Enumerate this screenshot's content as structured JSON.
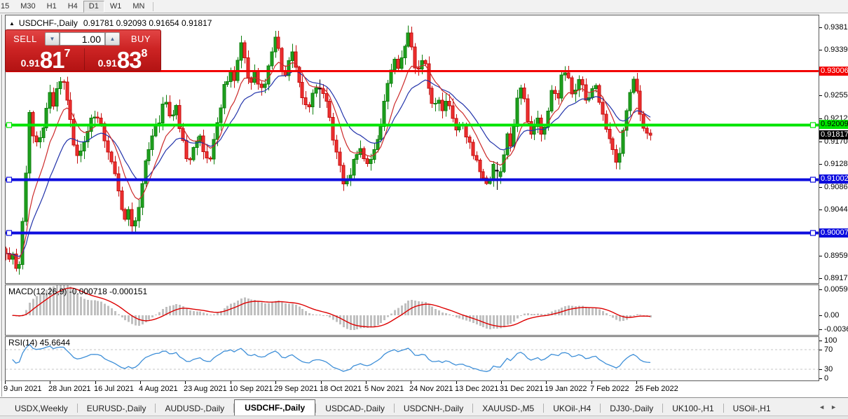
{
  "toolbar": {
    "timeframes": [
      {
        "label": "15",
        "active": false
      },
      {
        "label": "M30",
        "active": false
      },
      {
        "label": "H1",
        "active": false
      },
      {
        "label": "H4",
        "active": false
      },
      {
        "label": "D1",
        "active": true
      },
      {
        "label": "W1",
        "active": false
      },
      {
        "label": "MN",
        "active": false
      }
    ]
  },
  "chart": {
    "collapse_arrow": "▲",
    "symbol_title": "USDCHF-,Daily",
    "ohlc_text": "0.91781 0.92093 0.91654 0.91817",
    "trade_widget": {
      "sell_label": "SELL",
      "buy_label": "BUY",
      "volume": "1.00",
      "spinner_down": "▼",
      "spinner_up": "▲",
      "sell_price": {
        "small": "0.91",
        "big": "81",
        "sup": "7"
      },
      "buy_price": {
        "small": "0.91",
        "big": "83",
        "sup": "8"
      }
    }
  },
  "chart_data": {
    "type": "candlestick",
    "symbol": "USDCHF-",
    "timeframe": "Daily",
    "ohlc_current": {
      "open": 0.91781,
      "high": 0.92093,
      "low": 0.91654,
      "close": 0.91817
    },
    "current_price": "0.91817",
    "price_axis": {
      "min": 0.8908,
      "max": 0.9403,
      "ticks": [
        "0.93810",
        "0.93390",
        "0.92970",
        "0.92550",
        "0.92120",
        "0.91700",
        "0.91280",
        "0.90860",
        "0.90440",
        "0.90020",
        "0.89590",
        "0.89170"
      ]
    },
    "hlines": [
      {
        "price": 0.93006,
        "label": "0.93006",
        "color": "#f20000",
        "text": "#ffffff",
        "width": 3,
        "handles": false,
        "name": "resistance-line"
      },
      {
        "price": 0.92009,
        "label": "0.92009",
        "color": "#00e400",
        "text": "#000000",
        "width": 4,
        "handles": true,
        "name": "pivot-line"
      },
      {
        "price": 0.91002,
        "label": "0.91002",
        "color": "#0d0dde",
        "text": "#ffffff",
        "width": 4,
        "handles": true,
        "name": "support-line-1"
      },
      {
        "price": 0.90007,
        "label": "0.90007",
        "color": "#0d0dde",
        "text": "#ffffff",
        "width": 4,
        "handles": true,
        "name": "support-line-2"
      }
    ],
    "x_labels": [
      "9 Jun 2021",
      "28 Jun 2021",
      "16 Jul 2021",
      "4 Aug 2021",
      "23 Aug 2021",
      "10 Sep 2021",
      "29 Sep 2021",
      "18 Oct 2021",
      "5 Nov 2021",
      "24 Nov 2021",
      "13 Dec 2021",
      "31 Dec 2021",
      "19 Jan 2022",
      "7 Feb 2022",
      "25 Feb 2022"
    ],
    "candles_estimated": {
      "note": "OHLC path estimated from pixels; anchors are [x_px, price]",
      "count": 190,
      "seed": 9,
      "doji_indices": [
        92,
        144
      ],
      "anchors": [
        [
          8,
          0.8968
        ],
        [
          13,
          0.8948
        ],
        [
          18,
          0.8955
        ],
        [
          23,
          0.893
        ],
        [
          26,
          0.892
        ],
        [
          29,
          0.895
        ],
        [
          31,
          0.904
        ],
        [
          33,
          0.901
        ],
        [
          36,
          0.912
        ],
        [
          38,
          0.9095
        ],
        [
          41,
          0.923
        ],
        [
          44,
          0.9195
        ],
        [
          50,
          0.917
        ],
        [
          57,
          0.9185
        ],
        [
          63,
          0.9205
        ],
        [
          70,
          0.9265
        ],
        [
          76,
          0.924
        ],
        [
          82,
          0.9272
        ],
        [
          90,
          0.9285
        ],
        [
          97,
          0.9235
        ],
        [
          104,
          0.918
        ],
        [
          112,
          0.913
        ],
        [
          118,
          0.9165
        ],
        [
          126,
          0.92
        ],
        [
          134,
          0.9218
        ],
        [
          142,
          0.9222
        ],
        [
          150,
          0.9165
        ],
        [
          158,
          0.913
        ],
        [
          166,
          0.91
        ],
        [
          172,
          0.906
        ],
        [
          178,
          0.903
        ],
        [
          184,
          0.9052
        ],
        [
          190,
          0.9005
        ],
        [
          196,
          0.903
        ],
        [
          203,
          0.9095
        ],
        [
          211,
          0.915
        ],
        [
          219,
          0.919
        ],
        [
          227,
          0.9212
        ],
        [
          235,
          0.9245
        ],
        [
          243,
          0.9212
        ],
        [
          251,
          0.9232
        ],
        [
          258,
          0.919
        ],
        [
          264,
          0.915
        ],
        [
          270,
          0.9125
        ],
        [
          277,
          0.9162
        ],
        [
          284,
          0.9188
        ],
        [
          291,
          0.9152
        ],
        [
          298,
          0.9132
        ],
        [
          305,
          0.9172
        ],
        [
          312,
          0.9222
        ],
        [
          320,
          0.9272
        ],
        [
          328,
          0.9302
        ],
        [
          334,
          0.9282
        ],
        [
          340,
          0.9322
        ],
        [
          346,
          0.9358
        ],
        [
          352,
          0.9302
        ],
        [
          358,
          0.9272
        ],
        [
          365,
          0.9302
        ],
        [
          372,
          0.9262
        ],
        [
          379,
          0.9282
        ],
        [
          387,
          0.9332
        ],
        [
          394,
          0.9366
        ],
        [
          400,
          0.9312
        ],
        [
          406,
          0.9282
        ],
        [
          412,
          0.9316
        ],
        [
          418,
          0.933
        ],
        [
          425,
          0.9292
        ],
        [
          432,
          0.9252
        ],
        [
          439,
          0.9226
        ],
        [
          446,
          0.9262
        ],
        [
          453,
          0.928
        ],
        [
          460,
          0.9256
        ],
        [
          467,
          0.924
        ],
        [
          473,
          0.9192
        ],
        [
          479,
          0.9152
        ],
        [
          486,
          0.9112
        ],
        [
          493,
          0.9086
        ],
        [
          499,
          0.9112
        ],
        [
          506,
          0.9142
        ],
        [
          513,
          0.9162
        ],
        [
          520,
          0.9136
        ],
        [
          527,
          0.912
        ],
        [
          534,
          0.9156
        ],
        [
          541,
          0.9186
        ],
        [
          548,
          0.9242
        ],
        [
          555,
          0.9292
        ],
        [
          562,
          0.9322
        ],
        [
          569,
          0.9302
        ],
        [
          576,
          0.9342
        ],
        [
          583,
          0.9372
        ],
        [
          589,
          0.9322
        ],
        [
          595,
          0.9292
        ],
        [
          601,
          0.933
        ],
        [
          607,
          0.9312
        ],
        [
          613,
          0.9262
        ],
        [
          619,
          0.9226
        ],
        [
          625,
          0.9252
        ],
        [
          631,
          0.9232
        ],
        [
          637,
          0.9246
        ],
        [
          644,
          0.9212
        ],
        [
          651,
          0.9186
        ],
        [
          658,
          0.9212
        ],
        [
          665,
          0.9182
        ],
        [
          672,
          0.9152
        ],
        [
          679,
          0.913
        ],
        [
          686,
          0.911
        ],
        [
          692,
          0.9085
        ],
        [
          699,
          0.9092
        ],
        [
          705,
          0.913
        ],
        [
          711,
          0.91
        ],
        [
          717,
          0.9135
        ],
        [
          723,
          0.9185
        ],
        [
          729,
          0.9165
        ],
        [
          735,
          0.9215
        ],
        [
          741,
          0.9278
        ],
        [
          747,
          0.925
        ],
        [
          753,
          0.9205
        ],
        [
          760,
          0.918
        ],
        [
          766,
          0.9212
        ],
        [
          772,
          0.9188
        ],
        [
          778,
          0.9205
        ],
        [
          784,
          0.9245
        ],
        [
          790,
          0.927
        ],
        [
          796,
          0.9252
        ],
        [
          802,
          0.9298
        ],
        [
          808,
          0.9308
        ],
        [
          814,
          0.927
        ],
        [
          820,
          0.9252
        ],
        [
          826,
          0.9282
        ],
        [
          832,
          0.9262
        ],
        [
          838,
          0.9242
        ],
        [
          844,
          0.9266
        ],
        [
          850,
          0.927
        ],
        [
          856,
          0.924
        ],
        [
          862,
          0.9205
        ],
        [
          868,
          0.9185
        ],
        [
          874,
          0.915
        ],
        [
          880,
          0.9132
        ],
        [
          886,
          0.9165
        ],
        [
          892,
          0.9205
        ],
        [
          898,
          0.9248
        ],
        [
          904,
          0.9288
        ],
        [
          910,
          0.9245
        ],
        [
          916,
          0.921
        ],
        [
          921,
          0.919
        ],
        [
          926,
          0.9182
        ]
      ]
    },
    "moving_averages": [
      {
        "period": 9,
        "color": "#cc2a2a"
      },
      {
        "period": 18,
        "color": "#2233aa"
      }
    ],
    "indicators": {
      "macd": {
        "label": "MACD(12,26,9) -0.000718 -0.000151",
        "params": [
          12,
          26,
          9
        ],
        "values": [
          -0.000718,
          -0.000151
        ],
        "axis_ticks": [
          "0.005963",
          "0.00",
          "-0.003664"
        ],
        "histogram_color": "#c0c0c0",
        "signal_color": "#dd0000"
      },
      "rsi": {
        "label": "RSI(14) 45.6644",
        "period": 14,
        "value": 45.6644,
        "axis_ticks": [
          "100",
          "70",
          "30",
          "0"
        ],
        "levels": [
          70,
          30
        ],
        "line_color": "#3e8fd8"
      }
    },
    "colors": {
      "candle_up_fill": "#1ea11e",
      "candle_up_stroke": "#0f7f0f",
      "candle_down_fill": "#ee3030",
      "candle_down_stroke": "#c50e0e",
      "doji": "#000000",
      "current_price_badge_bg": "#000000",
      "current_price_badge_text": "#ffffff"
    }
  },
  "tabbar": {
    "tabs": [
      {
        "label": "USDX,Weekly",
        "active": false
      },
      {
        "label": "EURUSD-,Daily",
        "active": false
      },
      {
        "label": "AUDUSD-,Daily",
        "active": false
      },
      {
        "label": "USDCHF-,Daily",
        "active": true
      },
      {
        "label": "USDCAD-,Daily",
        "active": false
      },
      {
        "label": "USDCNH-,Daily",
        "active": false
      },
      {
        "label": "XAUUSD-,M5",
        "active": false
      },
      {
        "label": "UKOil-,H4",
        "active": false
      },
      {
        "label": "DJ30-,Daily",
        "active": false
      },
      {
        "label": "UK100-,H1",
        "active": false
      },
      {
        "label": "USOil-,H1",
        "active": false
      }
    ],
    "scroll_left": "◄",
    "scroll_right": "►"
  }
}
